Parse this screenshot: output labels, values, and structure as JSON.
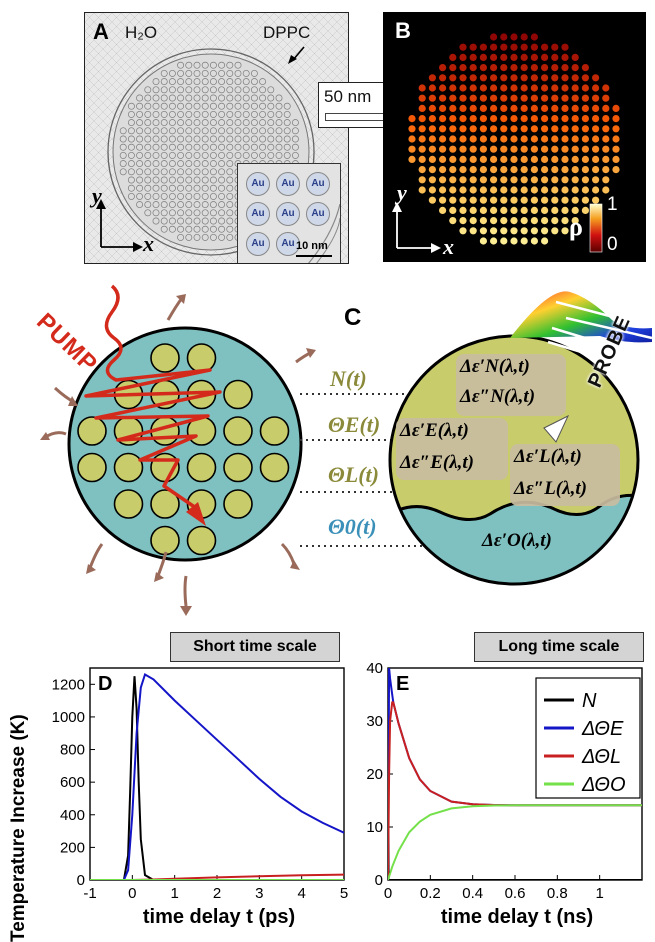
{
  "panelA": {
    "letter": "A",
    "water_label": "H₂O",
    "membrane_label": "DPPC",
    "scale_label": "50 nm",
    "inset_particle_label": "Au",
    "inset_scale_label": "10 nm",
    "axis_y": "y",
    "axis_x": "x"
  },
  "panelB": {
    "letter": "B",
    "colorbar_symbol": "ρ",
    "colorbar_max": "1",
    "colorbar_min": "0",
    "axis_y": "y",
    "axis_x": "x"
  },
  "panelC": {
    "letter": "C",
    "pump_label": "PUMP",
    "probe_label": "PROBE",
    "var_N": "N(t)",
    "var_theta_E": "ΘE(t)",
    "var_theta_L": "ΘL(t)",
    "var_theta_O": "Θ0(t)",
    "perm_N_real": "Δε′N(λ,t)",
    "perm_N_imag": "Δε″N(λ,t)",
    "perm_E_real": "Δε′E(λ,t)",
    "perm_E_imag": "Δε″E(λ,t)",
    "perm_L_real": "Δε′L(λ,t)",
    "perm_L_imag": "Δε″L(λ,t)",
    "perm_O_real": "Δε′O(λ,t)"
  },
  "ylabel": "Temperature Increase (K)",
  "colors": {
    "N": "#000000",
    "E": "#1515c8",
    "L": "#c82020",
    "O": "#74e04a",
    "water": "#7fc1c1",
    "gold": "#c8cc6a",
    "pump": "#d42a1c",
    "arrow": "#9a6b5a"
  },
  "chart_data": [
    {
      "panel": "D",
      "type": "line",
      "title": "Short time scale",
      "xlabel": "time delay t (ps)",
      "ylabel": "Temperature Increase (K)",
      "xlim": [
        -1,
        5
      ],
      "ylim": [
        0,
        1300
      ],
      "xticks": [
        -1,
        0,
        1,
        2,
        3,
        4,
        5
      ],
      "yticks": [
        0,
        200,
        400,
        600,
        800,
        1000,
        1200
      ],
      "series": [
        {
          "key": "N",
          "x": [
            -1,
            -0.2,
            -0.1,
            -0.05,
            0,
            0.05,
            0.1,
            0.15,
            0.2,
            0.3,
            0.5,
            5
          ],
          "y": [
            0,
            0,
            150,
            550,
            1000,
            1250,
            1050,
            600,
            250,
            30,
            0,
            0
          ]
        },
        {
          "key": "E",
          "x": [
            -1,
            -0.2,
            -0.1,
            0,
            0.1,
            0.2,
            0.3,
            0.5,
            1,
            1.5,
            2,
            2.5,
            3,
            3.5,
            4,
            4.5,
            5
          ],
          "y": [
            0,
            0,
            60,
            400,
            900,
            1180,
            1260,
            1230,
            1100,
            980,
            860,
            740,
            620,
            510,
            420,
            350,
            290
          ]
        },
        {
          "key": "L",
          "x": [
            -1,
            0,
            0.5,
            1,
            2,
            3,
            4,
            5
          ],
          "y": [
            0,
            0,
            3,
            8,
            16,
            23,
            29,
            33
          ]
        },
        {
          "key": "O",
          "x": [
            -1,
            5
          ],
          "y": [
            0,
            0
          ]
        }
      ]
    },
    {
      "panel": "E",
      "type": "line",
      "title": "Long time scale",
      "xlabel": "time delay t (ns)",
      "xlim": [
        0,
        1.2
      ],
      "ylim": [
        0,
        40
      ],
      "xticks": [
        0,
        0.2,
        0.4,
        0.6,
        0.8,
        1
      ],
      "yticks": [
        0,
        10,
        20,
        30,
        40
      ],
      "series": [
        {
          "key": "N",
          "label": "N",
          "x": [
            0,
            0.001,
            0.003,
            1.2
          ],
          "y": [
            0,
            40,
            0,
            0
          ]
        },
        {
          "key": "E",
          "label": "ΔΘE",
          "x": [
            0,
            0.005,
            0.01,
            0.02,
            0.025,
            0.05,
            0.1,
            0.15,
            0.2,
            0.3,
            0.4,
            0.5,
            0.6,
            0.8,
            1,
            1.2
          ],
          "y": [
            0,
            40,
            38,
            35,
            33.5,
            29.5,
            23,
            19,
            16.8,
            14.8,
            14.3,
            14.15,
            14.1,
            14.1,
            14.1,
            14.1
          ]
        },
        {
          "key": "L",
          "label": "ΔΘL",
          "x": [
            0,
            0.005,
            0.01,
            0.02,
            0.025,
            0.05,
            0.1,
            0.15,
            0.2,
            0.3,
            0.4,
            0.5,
            0.6,
            0.8,
            1,
            1.2
          ],
          "y": [
            0,
            20,
            30,
            33.5,
            33.5,
            29.5,
            23,
            19,
            16.8,
            14.8,
            14.3,
            14.15,
            14.1,
            14.1,
            14.1,
            14.1
          ]
        },
        {
          "key": "O",
          "label": "ΔΘO",
          "x": [
            0,
            0.02,
            0.05,
            0.1,
            0.15,
            0.2,
            0.3,
            0.4,
            0.5,
            0.6,
            0.8,
            1,
            1.2
          ],
          "y": [
            0,
            2.5,
            5.5,
            9,
            11,
            12.3,
            13.5,
            13.9,
            14.05,
            14.1,
            14.1,
            14.1,
            14.1
          ]
        }
      ]
    }
  ]
}
